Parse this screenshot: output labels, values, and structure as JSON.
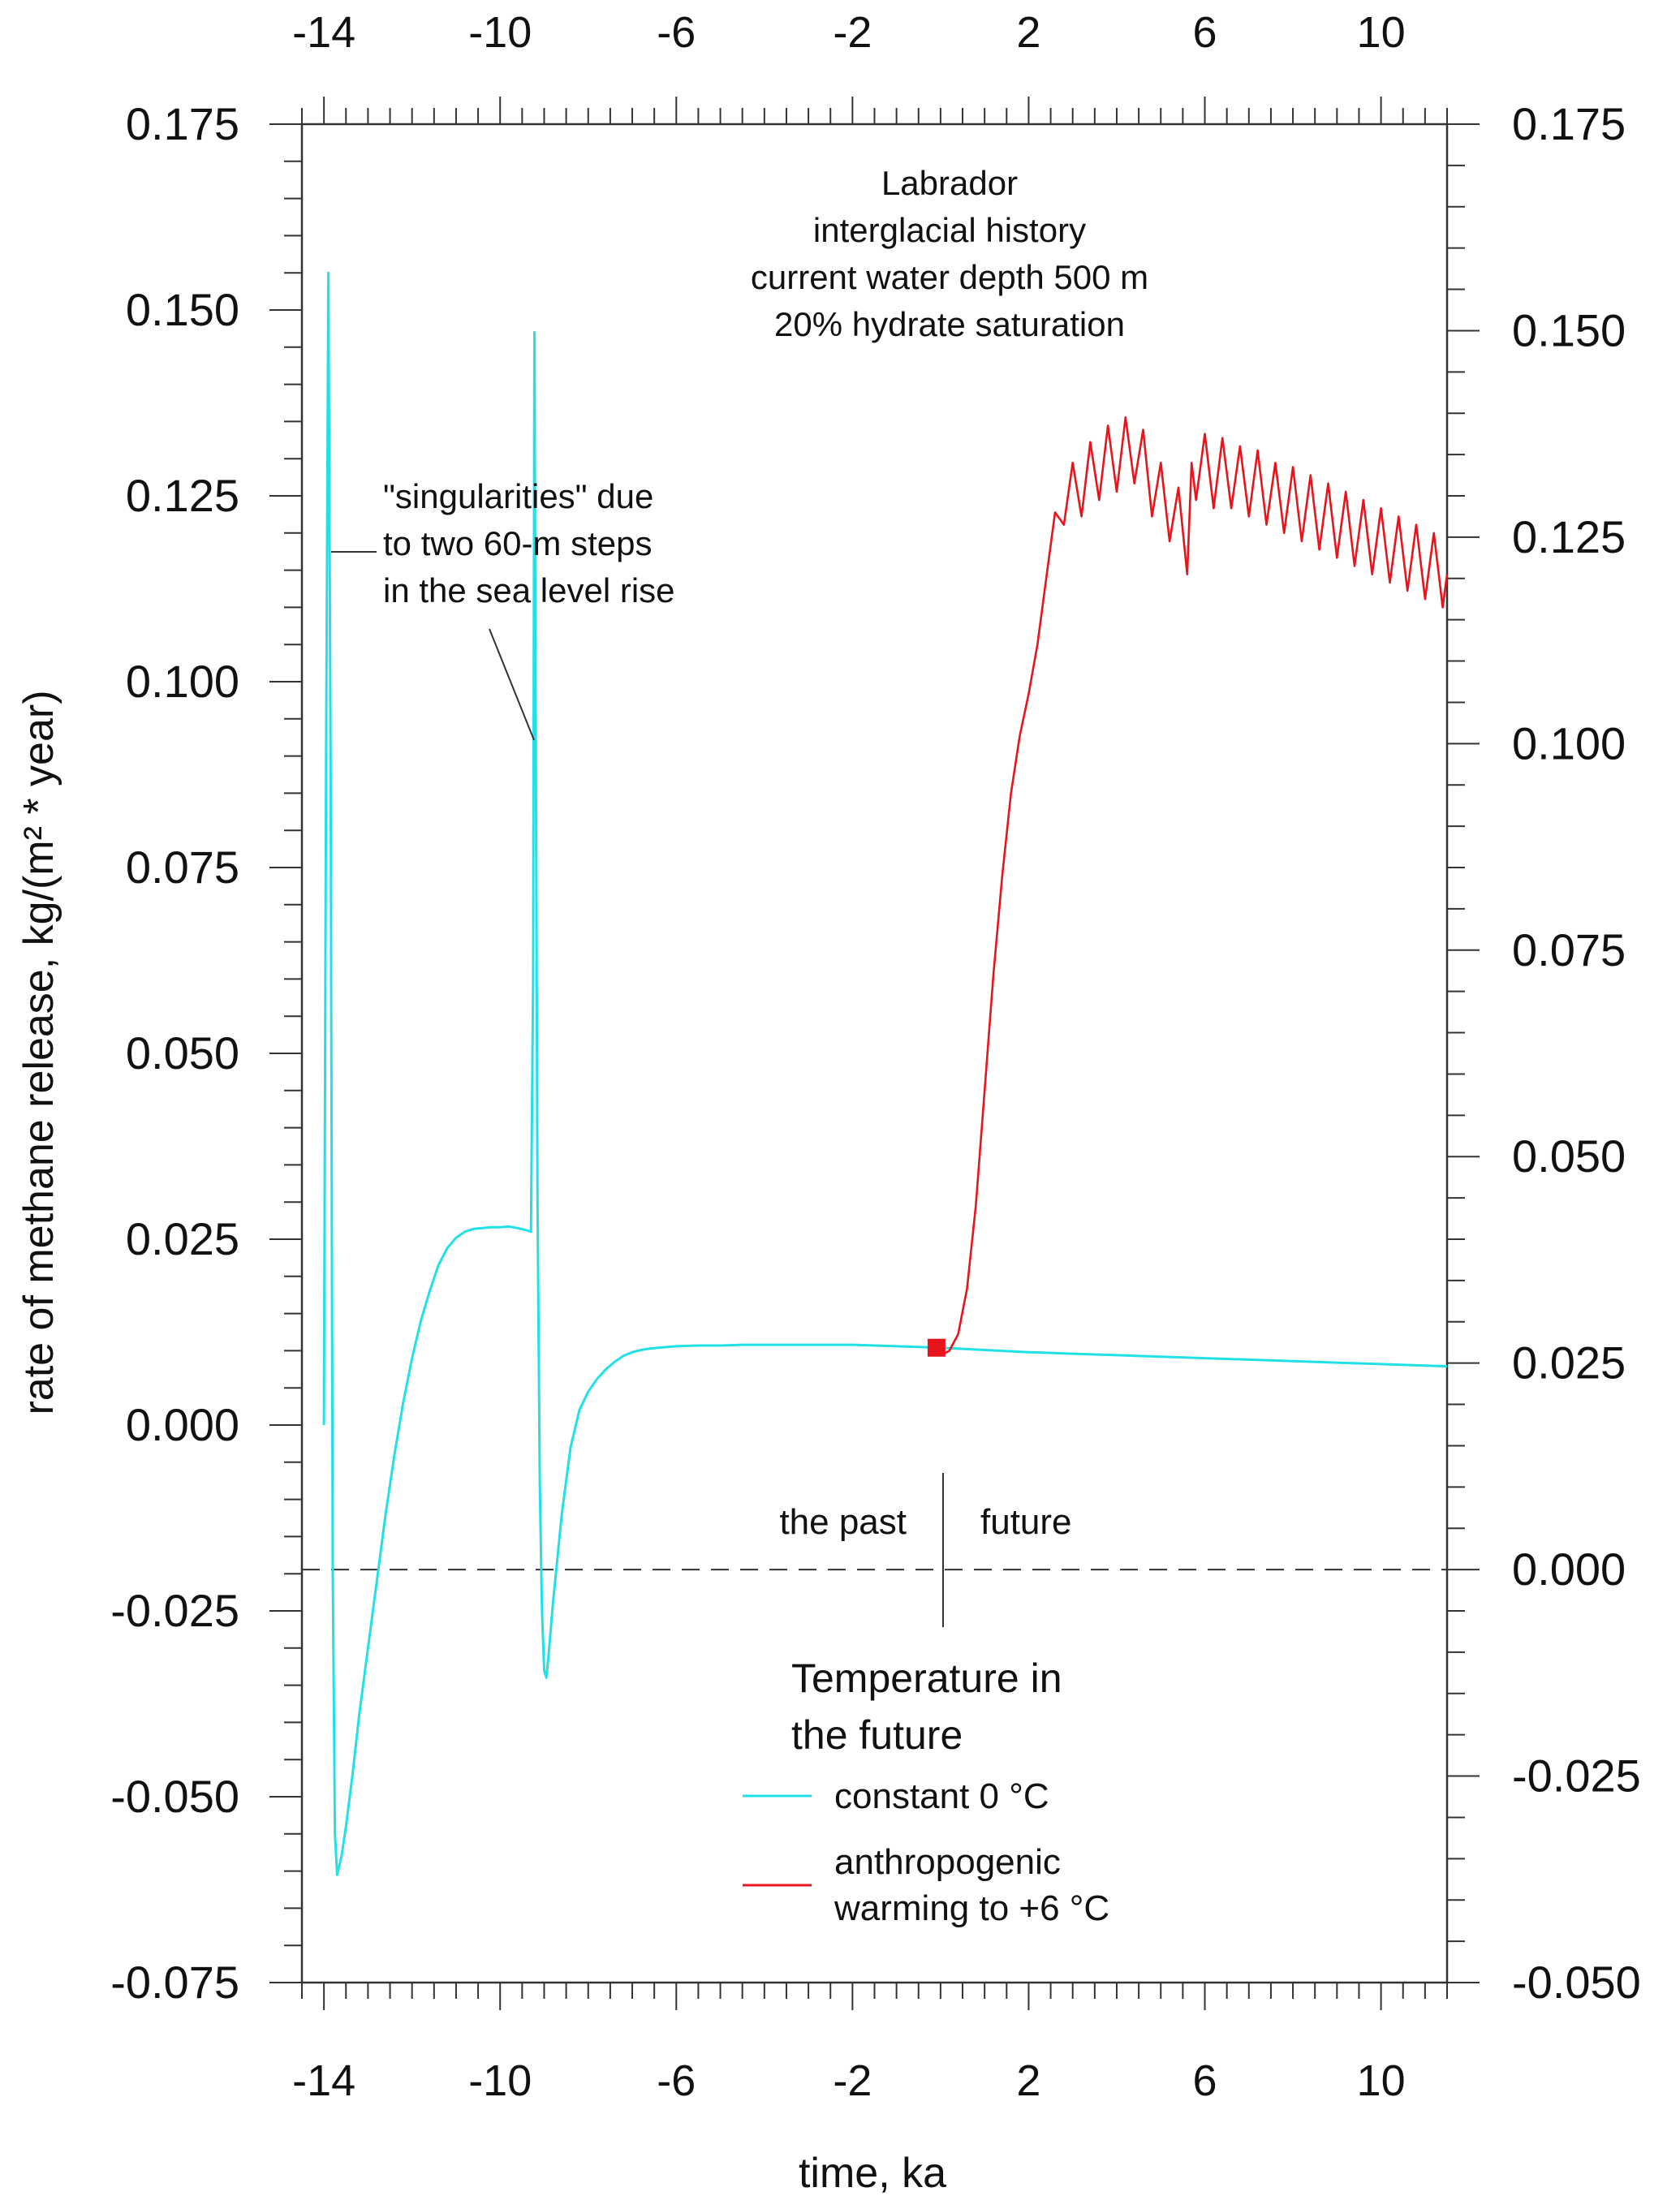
{
  "chart_data": {
    "type": "line",
    "title_lines": [
      "Labrador",
      "interglacial history",
      "current water depth 500 m",
      "20% hydrate saturation"
    ],
    "xlabel": "time, ka",
    "ylabel_left": "rate of methane release, kg/(m² * year)",
    "xlim": [
      -14.5,
      11.5
    ],
    "ylim_left": [
      -0.075,
      0.175
    ],
    "ylim_right": [
      -0.05,
      0.175
    ],
    "x_tick_values": [
      -14,
      -10,
      -6,
      -2,
      2,
      6,
      10
    ],
    "x_tick_labels": [
      "-14",
      "-10",
      "-6",
      "-2",
      "2",
      "6",
      "10"
    ],
    "y_left_ticks": [
      -0.075,
      -0.05,
      -0.025,
      0.0,
      0.025,
      0.05,
      0.075,
      0.1,
      0.125,
      0.15,
      0.175
    ],
    "y_left_labels": [
      "-0.075",
      "-0.050",
      "-0.025",
      "0.000",
      "0.025",
      "0.050",
      "0.075",
      "0.100",
      "0.125",
      "0.150",
      "0.175"
    ],
    "y_right_ticks": [
      -0.05,
      -0.025,
      0.0,
      0.025,
      0.05,
      0.075,
      0.1,
      0.125,
      0.15,
      0.175
    ],
    "y_right_labels": [
      "-0.050",
      "-0.025",
      "0.000",
      "0.025",
      "0.050",
      "0.075",
      "0.100",
      "0.125",
      "0.150",
      "0.175"
    ],
    "zero_line_right": 0.0,
    "annotations": {
      "singularities": [
        "\"singularities\" due",
        "to two 60-m steps",
        "in the sea level rise"
      ],
      "past": "the past",
      "future": "future"
    },
    "legend": {
      "title_lines": [
        "Temperature in",
        "the future"
      ],
      "position": "lower-right"
    },
    "series": [
      {
        "name_lines": [
          "constant 0 °C"
        ],
        "color": "#22e0e8",
        "axis": "left",
        "x": [
          -14.0,
          -13.95,
          -13.9,
          -13.85,
          -13.8,
          -13.75,
          -13.7,
          -13.6,
          -13.5,
          -13.35,
          -13.2,
          -13.0,
          -12.8,
          -12.6,
          -12.4,
          -12.2,
          -12.0,
          -11.8,
          -11.6,
          -11.4,
          -11.2,
          -11.0,
          -10.8,
          -10.6,
          -10.4,
          -10.2,
          -10.0,
          -9.8,
          -9.6,
          -9.4,
          -9.3,
          -9.25,
          -9.22,
          -9.2,
          -9.15,
          -9.1,
          -9.05,
          -9.0,
          -8.95,
          -8.9,
          -8.8,
          -8.6,
          -8.4,
          -8.2,
          -8.0,
          -7.8,
          -7.6,
          -7.4,
          -7.2,
          -7.0,
          -6.8,
          -6.6,
          -6.4,
          -6.2,
          -6.0,
          -5.5,
          -5.0,
          -4.5,
          -4.0,
          -3.5,
          -3.0,
          -2.5,
          -2.0,
          -1.5,
          -1.0,
          -0.5,
          0.0,
          1.0,
          2.0,
          3.0,
          4.0,
          5.0,
          6.0,
          7.0,
          8.0,
          9.0,
          10.0,
          11.0,
          11.5
        ],
        "values": [
          0.0,
          0.09,
          0.155,
          0.09,
          -0.02,
          -0.055,
          -0.0605,
          -0.058,
          -0.054,
          -0.047,
          -0.039,
          -0.03,
          -0.021,
          -0.012,
          -0.004,
          0.003,
          0.009,
          0.014,
          0.018,
          0.0215,
          0.0238,
          0.0252,
          0.026,
          0.0264,
          0.0265,
          0.0266,
          0.0266,
          0.0267,
          0.0265,
          0.0262,
          0.026,
          0.06,
          0.147,
          0.11,
          0.03,
          -0.008,
          -0.025,
          -0.033,
          -0.034,
          -0.031,
          -0.024,
          -0.012,
          -0.003,
          0.002,
          0.0045,
          0.0062,
          0.0075,
          0.0085,
          0.0093,
          0.0098,
          0.0101,
          0.0103,
          0.0104,
          0.0105,
          0.0106,
          0.0107,
          0.0107,
          0.0108,
          0.0108,
          0.0108,
          0.0108,
          0.0108,
          0.0108,
          0.0107,
          0.0106,
          0.0105,
          0.0104,
          0.0101,
          0.0098,
          0.0096,
          0.0094,
          0.0092,
          0.009,
          0.0088,
          0.0086,
          0.0084,
          0.0082,
          0.008,
          0.0079
        ]
      },
      {
        "name_lines": [
          "anthropogenic",
          "warming to +6 °C"
        ],
        "color": "#e8141c",
        "axis": "right",
        "x": [
          0.0,
          0.2,
          0.4,
          0.6,
          0.8,
          1.0,
          1.2,
          1.4,
          1.6,
          1.8,
          2.0,
          2.2,
          2.4,
          2.6,
          2.8,
          3.0,
          3.2,
          3.4,
          3.6,
          3.8,
          4.0,
          4.2,
          4.4,
          4.6,
          4.8,
          5.0,
          5.2,
          5.4,
          5.6,
          5.7,
          5.8,
          6.0,
          6.2,
          6.4,
          6.6,
          6.8,
          7.0,
          7.2,
          7.4,
          7.6,
          7.8,
          8.0,
          8.2,
          8.4,
          8.6,
          8.8,
          9.0,
          9.2,
          9.4,
          9.6,
          9.8,
          10.0,
          10.2,
          10.4,
          10.6,
          10.8,
          11.0,
          11.2,
          11.4,
          11.5
        ],
        "values": [
          0.0259,
          0.0265,
          0.0285,
          0.034,
          0.044,
          0.058,
          0.072,
          0.084,
          0.094,
          0.101,
          0.106,
          0.112,
          0.12,
          0.128,
          0.1265,
          0.134,
          0.1275,
          0.1365,
          0.1295,
          0.1385,
          0.1305,
          0.1395,
          0.1315,
          0.138,
          0.1275,
          0.134,
          0.1245,
          0.131,
          0.1205,
          0.134,
          0.1295,
          0.1375,
          0.1285,
          0.137,
          0.1285,
          0.136,
          0.1275,
          0.1355,
          0.1265,
          0.134,
          0.1255,
          0.1335,
          0.1245,
          0.1325,
          0.1235,
          0.1315,
          0.1225,
          0.1305,
          0.1215,
          0.1295,
          0.1205,
          0.1285,
          0.1195,
          0.1275,
          0.1185,
          0.1265,
          0.1175,
          0.1255,
          0.1165,
          0.1205
        ]
      }
    ],
    "marker": {
      "x": 0.0,
      "y": 0.0104,
      "color": "#e8141c"
    }
  }
}
